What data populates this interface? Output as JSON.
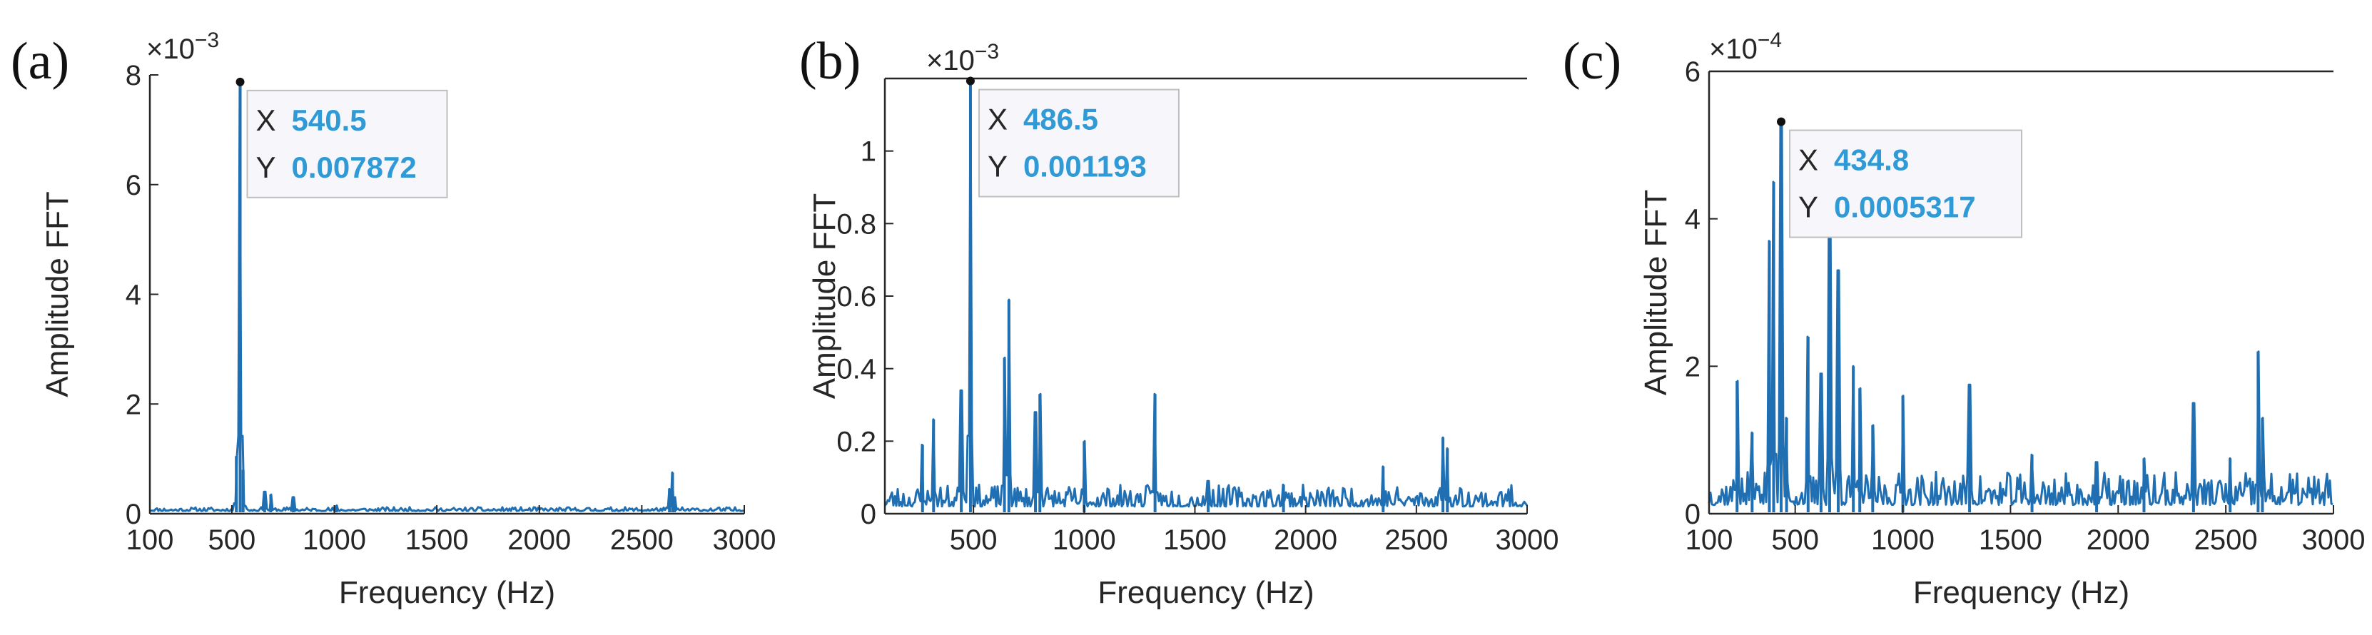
{
  "colors": {
    "line": "#1f6fb2",
    "axis": "#262626",
    "tip_value": "#2f9ad6",
    "tip_key": "#262626",
    "tip_bg": "#f7f7fb",
    "tip_border": "#bfbfbf"
  },
  "chart_data": [
    {
      "type": "line",
      "panel_label": "(a)",
      "xlabel": "Frequency (Hz)",
      "ylabel": "Amplitude FFT",
      "exponent": "×10",
      "exponent_power": "−3",
      "scale": 0.001,
      "xlim": [
        100,
        3000
      ],
      "ylim": [
        0,
        8
      ],
      "xticks": [
        100,
        500,
        1000,
        1500,
        2000,
        2500,
        3000
      ],
      "xtick_labels": [
        "100",
        "500",
        "1000",
        "1500",
        "2000",
        "2500",
        "3000"
      ],
      "yticks": [
        0,
        2,
        4,
        6,
        8
      ],
      "ytick_labels": [
        "0",
        "2",
        "4",
        "6",
        "8"
      ],
      "noise": {
        "base": 0.05,
        "amp": 0.07,
        "seed": 11
      },
      "peaks": [
        [
          540.5,
          7.872
        ],
        [
          522,
          1.05
        ],
        [
          555,
          0.8
        ],
        [
          660,
          0.4
        ],
        [
          690,
          0.35
        ],
        [
          800,
          0.3
        ],
        [
          1010,
          0.15
        ],
        [
          2650,
          0.75
        ],
        [
          2635,
          0.45
        ],
        [
          2660,
          0.3
        ]
      ],
      "datatip": {
        "x_key": "X",
        "x_value": "540.5",
        "y_key": "Y",
        "y_value": "0.007872",
        "x": 540.5,
        "y": 7.872
      }
    },
    {
      "type": "line",
      "panel_label": "(b)",
      "xlabel": "Frequency (Hz)",
      "ylabel": "Amplitude FFT",
      "exponent": "×10",
      "exponent_power": "−3",
      "scale": 0.001,
      "xlim": [
        100,
        3000
      ],
      "ylim": [
        0,
        1.2
      ],
      "xticks": [
        500,
        1000,
        1500,
        2000,
        2500,
        3000
      ],
      "xtick_labels": [
        "500",
        "1000",
        "1500",
        "2000",
        "2500",
        "3000"
      ],
      "yticks": [
        0,
        0.2,
        0.4,
        0.6,
        0.8,
        1
      ],
      "ytick_labels": [
        "0",
        "0.2",
        "0.4",
        "0.6",
        "0.8",
        "1"
      ],
      "noise": {
        "base": 0.02,
        "amp": 0.06,
        "seed": 23
      },
      "peaks": [
        [
          486.5,
          1.193
        ],
        [
          270,
          0.19
        ],
        [
          320,
          0.26
        ],
        [
          445,
          0.34
        ],
        [
          640,
          0.43
        ],
        [
          660,
          0.59
        ],
        [
          780,
          0.28
        ],
        [
          800,
          0.33
        ],
        [
          1000,
          0.2
        ],
        [
          1320,
          0.33
        ],
        [
          1560,
          0.09
        ],
        [
          1900,
          0.08
        ],
        [
          2350,
          0.13
        ],
        [
          2620,
          0.21
        ],
        [
          2640,
          0.18
        ]
      ],
      "datatip": {
        "x_key": "X",
        "x_value": "486.5",
        "y_key": "Y",
        "y_value": "0.001193",
        "x": 486.5,
        "y": 1.193
      }
    },
    {
      "type": "line",
      "panel_label": "(c)",
      "xlabel": "Frequency (Hz)",
      "ylabel": "Amplitude FFT",
      "exponent": "×10",
      "exponent_power": "−4",
      "scale": 0.0001,
      "xlim": [
        100,
        3000
      ],
      "ylim": [
        0,
        6
      ],
      "xticks": [
        100,
        500,
        1000,
        1500,
        2000,
        2500,
        3000
      ],
      "xtick_labels": [
        "100",
        "500",
        "1000",
        "1500",
        "2000",
        "2500",
        "3000"
      ],
      "yticks": [
        0,
        2,
        4,
        6
      ],
      "ytick_labels": [
        "0",
        "2",
        "4",
        "6"
      ],
      "noise": {
        "base": 0.12,
        "amp": 0.45,
        "seed": 37
      },
      "peaks": [
        [
          434.8,
          5.317
        ],
        [
          230,
          1.8
        ],
        [
          300,
          1.1
        ],
        [
          380,
          3.7
        ],
        [
          400,
          4.5
        ],
        [
          460,
          1.3
        ],
        [
          560,
          2.4
        ],
        [
          620,
          1.9
        ],
        [
          660,
          4.2
        ],
        [
          700,
          3.3
        ],
        [
          770,
          2.0
        ],
        [
          800,
          1.7
        ],
        [
          860,
          1.2
        ],
        [
          1000,
          1.6
        ],
        [
          1310,
          1.75
        ],
        [
          1600,
          0.8
        ],
        [
          1900,
          0.7
        ],
        [
          2120,
          0.75
        ],
        [
          2350,
          1.5
        ],
        [
          2520,
          0.75
        ],
        [
          2650,
          2.2
        ],
        [
          2670,
          1.3
        ]
      ],
      "datatip": {
        "x_key": "X",
        "x_value": "434.8",
        "y_key": "Y",
        "y_value": "0.0005317",
        "x": 434.8,
        "y": 5.317
      }
    }
  ]
}
